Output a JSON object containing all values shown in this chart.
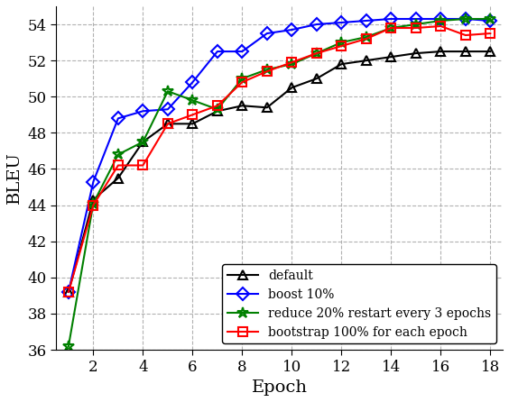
{
  "epochs": [
    1,
    2,
    3,
    4,
    5,
    6,
    7,
    8,
    9,
    10,
    11,
    12,
    13,
    14,
    15,
    16,
    17,
    18
  ],
  "default": [
    39.2,
    44.3,
    45.5,
    47.5,
    48.5,
    48.5,
    49.2,
    49.5,
    49.4,
    50.5,
    51.0,
    51.8,
    52.0,
    52.2,
    52.4,
    52.5,
    52.5,
    52.5
  ],
  "boost10": [
    39.2,
    45.3,
    48.8,
    49.2,
    49.3,
    50.8,
    52.5,
    52.5,
    53.5,
    53.7,
    54.0,
    54.1,
    54.2,
    54.3,
    54.3,
    54.3,
    54.3,
    54.2
  ],
  "reduce20": [
    36.2,
    44.1,
    46.8,
    47.5,
    50.3,
    49.8,
    49.3,
    51.0,
    51.5,
    51.8,
    52.4,
    53.0,
    53.3,
    53.8,
    54.0,
    54.2,
    54.3,
    54.3
  ],
  "bootstrap100": [
    39.2,
    44.0,
    46.2,
    46.2,
    48.5,
    49.0,
    49.5,
    50.8,
    51.4,
    51.9,
    52.4,
    52.8,
    53.2,
    53.8,
    53.8,
    53.9,
    53.4,
    53.5
  ],
  "default_color": "#000000",
  "boost10_color": "#0000ff",
  "reduce20_color": "#008000",
  "bootstrap100_color": "#ff0000",
  "xlabel": "Epoch",
  "ylabel": "BLEU",
  "ylim": [
    36,
    55
  ],
  "xlim": [
    0.5,
    18.5
  ],
  "yticks": [
    36,
    38,
    40,
    42,
    44,
    46,
    48,
    50,
    52,
    54
  ],
  "xticks": [
    2,
    4,
    6,
    8,
    10,
    12,
    14,
    16,
    18
  ],
  "legend_labels": [
    "default",
    "boost 10%",
    "reduce 20% restart every 3 epochs",
    "bootstrap 100% for each epoch"
  ],
  "legend_loc": "lower right",
  "grid_color": "#aaaaaa",
  "background_color": "#ffffff"
}
